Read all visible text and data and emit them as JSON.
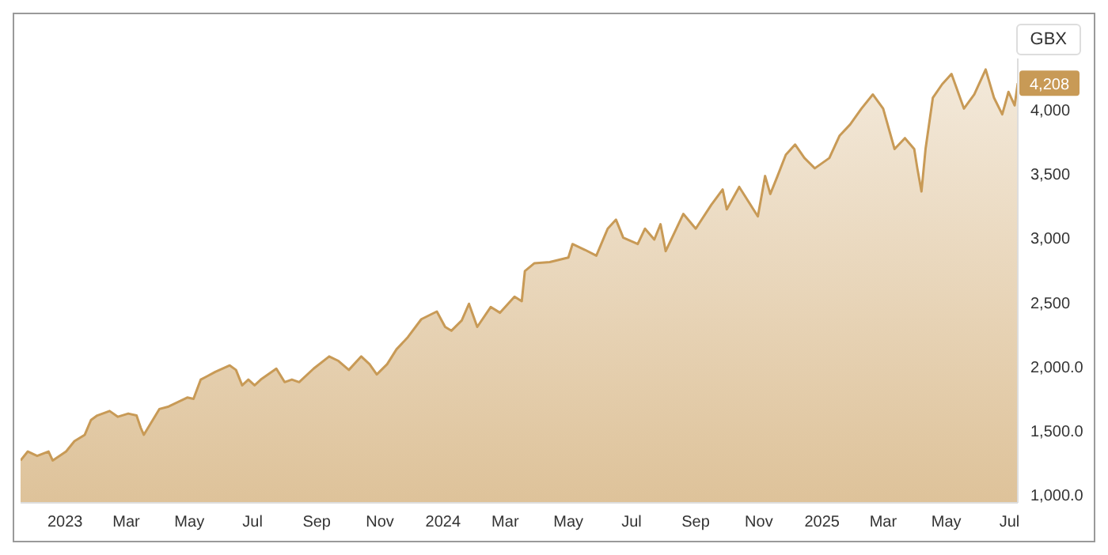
{
  "chart_data": {
    "type": "area",
    "ylabel": "GBX",
    "grid": false,
    "legend": false,
    "x": [
      "2022-11-19",
      "2022-11-26",
      "2022-12-05",
      "2022-12-16",
      "2022-12-20",
      "2023-01-02",
      "2023-01-10",
      "2023-01-20",
      "2023-01-26",
      "2023-02-01",
      "2023-02-13",
      "2023-02-21",
      "2023-03-03",
      "2023-03-11",
      "2023-03-15",
      "2023-03-18",
      "2023-04-02",
      "2023-04-11",
      "2023-04-29",
      "2023-05-05",
      "2023-05-12",
      "2023-05-18",
      "2023-05-26",
      "2023-06-09",
      "2023-06-15",
      "2023-06-21",
      "2023-06-27",
      "2023-07-03",
      "2023-07-09",
      "2023-07-24",
      "2023-08-01",
      "2023-08-08",
      "2023-08-15",
      "2023-08-29",
      "2023-09-13",
      "2023-09-22",
      "2023-10-02",
      "2023-10-14",
      "2023-10-22",
      "2023-10-29",
      "2023-11-08",
      "2023-11-17",
      "2023-11-28",
      "2023-12-11",
      "2023-12-26",
      "2024-01-03",
      "2024-01-09",
      "2024-01-19",
      "2024-01-26",
      "2024-02-03",
      "2024-02-16",
      "2024-02-25",
      "2024-03-10",
      "2024-03-17",
      "2024-03-20",
      "2024-03-29",
      "2024-04-13",
      "2024-05-01",
      "2024-05-05",
      "2024-05-17",
      "2024-05-28",
      "2024-06-08",
      "2024-06-16",
      "2024-06-23",
      "2024-07-07",
      "2024-07-14",
      "2024-07-23",
      "2024-07-29",
      "2024-08-03",
      "2024-08-20",
      "2024-09-01",
      "2024-09-16",
      "2024-09-27",
      "2024-10-01",
      "2024-10-13",
      "2024-10-31",
      "2024-11-07",
      "2024-11-12",
      "2024-11-19",
      "2024-11-27",
      "2024-12-06",
      "2024-12-15",
      "2024-12-25",
      "2025-01-08",
      "2025-01-18",
      "2025-01-28",
      "2025-02-08",
      "2025-02-19",
      "2025-03-01",
      "2025-03-12",
      "2025-03-22",
      "2025-03-31",
      "2025-04-03",
      "2025-04-07",
      "2025-04-11",
      "2025-04-18",
      "2025-04-27",
      "2025-05-06",
      "2025-05-18",
      "2025-05-28",
      "2025-06-08",
      "2025-06-16",
      "2025-06-24",
      "2025-06-30",
      "2025-07-06",
      "2025-07-09"
    ],
    "series": [
      {
        "color": "#c89a56",
        "values": [
          1270,
          1340,
          1305,
          1340,
          1270,
          1340,
          1420,
          1470,
          1585,
          1620,
          1655,
          1610,
          1635,
          1620,
          1525,
          1470,
          1670,
          1690,
          1760,
          1750,
          1900,
          1925,
          1960,
          2010,
          1975,
          1855,
          1900,
          1855,
          1900,
          1985,
          1880,
          1900,
          1880,
          1985,
          2080,
          2045,
          1975,
          2080,
          2020,
          1940,
          2020,
          2135,
          2230,
          2370,
          2430,
          2310,
          2280,
          2360,
          2490,
          2310,
          2465,
          2420,
          2545,
          2510,
          2745,
          2805,
          2815,
          2850,
          2955,
          2910,
          2865,
          3075,
          3145,
          3005,
          2955,
          3075,
          2990,
          3110,
          2900,
          3190,
          3075,
          3260,
          3380,
          3225,
          3400,
          3170,
          3485,
          3345,
          3485,
          3650,
          3730,
          3625,
          3545,
          3625,
          3800,
          3885,
          4010,
          4120,
          4010,
          3695,
          3780,
          3695,
          3545,
          3365,
          3700,
          4095,
          4200,
          4280,
          4010,
          4120,
          4315,
          4095,
          3965,
          4140,
          4035,
          4208
        ]
      }
    ],
    "xlim": [
      "2022-11-19",
      "2025-07-09"
    ],
    "xticks": [
      {
        "value": "2023-01-01",
        "label": "2023"
      },
      {
        "value": "2023-03-01",
        "label": "Mar"
      },
      {
        "value": "2023-05-01",
        "label": "May"
      },
      {
        "value": "2023-07-01",
        "label": "Jul"
      },
      {
        "value": "2023-09-01",
        "label": "Sep"
      },
      {
        "value": "2023-11-01",
        "label": "Nov"
      },
      {
        "value": "2024-01-01",
        "label": "2024"
      },
      {
        "value": "2024-03-01",
        "label": "Mar"
      },
      {
        "value": "2024-05-01",
        "label": "May"
      },
      {
        "value": "2024-07-01",
        "label": "Jul"
      },
      {
        "value": "2024-09-01",
        "label": "Sep"
      },
      {
        "value": "2024-11-01",
        "label": "Nov"
      },
      {
        "value": "2025-01-01",
        "label": "2025"
      },
      {
        "value": "2025-03-01",
        "label": "Mar"
      },
      {
        "value": "2025-05-01",
        "label": "May"
      },
      {
        "value": "2025-07-01",
        "label": "Jul"
      }
    ],
    "ylim": [
      940,
      4400
    ],
    "yticks": [
      {
        "value": 1000,
        "label": "1,000.0"
      },
      {
        "value": 1500,
        "label": "1,500.0"
      },
      {
        "value": 2000,
        "label": "2,000.0"
      },
      {
        "value": 2500,
        "label": "2,500"
      },
      {
        "value": 3000,
        "label": "3,000"
      },
      {
        "value": 3500,
        "label": "3,500"
      },
      {
        "value": 4000,
        "label": "4,000"
      }
    ],
    "annotations": [
      {
        "text": "4,208",
        "x": "2025-07-09",
        "y": 4208
      }
    ]
  }
}
